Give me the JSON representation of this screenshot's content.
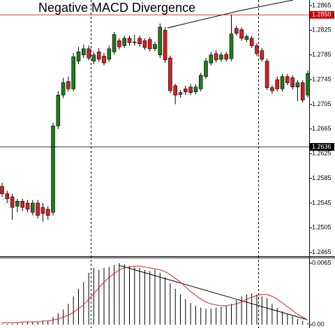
{
  "chart_data": [
    {
      "type": "candlestick",
      "title": "Negative MACD Divergence",
      "open": [
        1.2572,
        1.256,
        1.2555,
        1.254,
        1.2548,
        1.2545,
        1.253,
        1.2545,
        1.2538,
        1.2535,
        1.253,
        1.267,
        1.272,
        1.2742,
        1.273,
        1.2775,
        1.2785,
        1.2795,
        1.2775,
        1.279,
        1.2783,
        1.2778,
        1.279,
        1.2808,
        1.28,
        1.2812,
        1.2805,
        1.2812,
        1.2808,
        1.281,
        1.2795,
        1.2785,
        1.2825,
        1.278,
        1.2735,
        1.2721,
        1.273,
        1.2733,
        1.2725,
        1.273,
        1.275,
        1.2772,
        1.2787,
        1.2778,
        1.2786,
        1.2779,
        1.2828,
        1.2826,
        1.281,
        1.2812,
        1.28,
        1.2792,
        1.2775,
        1.2732,
        1.2745,
        1.273,
        1.275,
        1.2748,
        1.2733,
        1.274,
        1.272
      ],
      "high": [
        1.2578,
        1.2565,
        1.256,
        1.2552,
        1.2552,
        1.255,
        1.255,
        1.255,
        1.2545,
        1.254,
        1.2675,
        1.2726,
        1.2748,
        1.275,
        1.2788,
        1.2798,
        1.2802,
        1.28,
        1.279,
        1.2796,
        1.2788,
        1.28,
        1.2822,
        1.2812,
        1.2816,
        1.2816,
        1.2818,
        1.2816,
        1.2812,
        1.2814,
        1.2806,
        1.2836,
        1.283,
        1.2784,
        1.2738,
        1.2728,
        1.2735,
        1.2738,
        1.2737,
        1.2756,
        1.278,
        1.279,
        1.2792,
        1.2789,
        1.279,
        1.285,
        1.2832,
        1.283,
        1.2818,
        1.2816,
        1.2804,
        1.2796,
        1.2779,
        1.2736,
        1.275,
        1.2754,
        1.2754,
        1.2752,
        1.2744,
        1.2744,
        1.276
      ],
      "low": [
        1.2555,
        1.2545,
        1.2518,
        1.253,
        1.2532,
        1.253,
        1.2525,
        1.252,
        1.2515,
        1.2518,
        1.2525,
        1.2665,
        1.2715,
        1.2726,
        1.2726,
        1.277,
        1.278,
        1.2776,
        1.277,
        1.2774,
        1.2768,
        1.2774,
        1.2786,
        1.2794,
        1.2796,
        1.28,
        1.28,
        1.2798,
        1.2793,
        1.2791,
        1.2791,
        1.278,
        1.2772,
        1.2723,
        1.2705,
        1.2716,
        1.272,
        1.272,
        1.2721,
        1.2726,
        1.2746,
        1.2768,
        1.2773,
        1.2774,
        1.2774,
        1.2775,
        1.2816,
        1.2808,
        1.2806,
        1.2796,
        1.2783,
        1.2774,
        1.2728,
        1.2722,
        1.2726,
        1.2726,
        1.2736,
        1.2729,
        1.271,
        1.2708,
        1.2716
      ],
      "close": [
        1.256,
        1.2552,
        1.2538,
        1.2548,
        1.2538,
        1.2535,
        1.2545,
        1.2525,
        1.2528,
        1.2525,
        1.267,
        1.272,
        1.274,
        1.273,
        1.2782,
        1.279,
        1.2795,
        1.278,
        1.2785,
        1.2778,
        1.2772,
        1.2795,
        1.2818,
        1.2798,
        1.2812,
        1.2805,
        1.2806,
        1.2803,
        1.2797,
        1.2795,
        1.2802,
        1.283,
        1.2777,
        1.2727,
        1.272,
        1.2724,
        1.2725,
        1.2724,
        1.2733,
        1.2752,
        1.2775,
        1.2785,
        1.2777,
        1.2785,
        1.2778,
        1.2819,
        1.282,
        1.2812,
        1.2815,
        1.28,
        1.2787,
        1.2778,
        1.2732,
        1.2727,
        1.273,
        1.275,
        1.274,
        1.2733,
        1.274,
        1.2712,
        1.2755
      ],
      "up_color": "#1f7a1f",
      "down_color": "#d42020",
      "ylim": [
        1.2459,
        1.2874
      ],
      "yticks": [
        1.2865,
        1.2825,
        1.2785,
        1.2745,
        1.2705,
        1.2665,
        1.2625,
        1.2585,
        1.2545,
        1.2505,
        1.2465
      ],
      "price_lines": [
        {
          "value": 1.285,
          "label": "1.2850"
        },
        1.2636
      ],
      "price_line_colors": [
        "#cc0000",
        "#000000"
      ]
    },
    {
      "type": "macd",
      "series": [
        {
          "kind": "bar",
          "color": "#000000",
          "values": [
            0.0001,
            0.0001,
            0.0001,
            0.0002,
            0.0002,
            0.0003,
            0.0003,
            0.0003,
            0.0004,
            0.0004,
            0.0008,
            0.0012,
            0.0016,
            0.0022,
            0.003,
            0.0038,
            0.0045,
            0.0055,
            0.006,
            0.0058,
            0.006,
            0.0061,
            0.0063,
            0.0065,
            0.0064,
            0.0062,
            0.0061,
            0.006,
            0.0058,
            0.0057,
            0.0058,
            0.0055,
            0.005,
            0.0044,
            0.0038,
            0.0032,
            0.0027,
            0.0023,
            0.002,
            0.0018,
            0.0017,
            0.0017,
            0.0018,
            0.0019,
            0.002,
            0.0022,
            0.0026,
            0.003,
            0.0032,
            0.0033,
            0.0032,
            0.003,
            0.0028,
            0.0022,
            0.0018,
            0.0014,
            0.0011,
            0.0009,
            0.0006,
            0.0004,
            0.0002
          ]
        },
        {
          "kind": "line",
          "color": "#d42020",
          "values": [
            0.0002,
            0.0002,
            0.0002,
            0.0002,
            0.0003,
            0.0003,
            0.0003,
            0.0003,
            0.0004,
            0.0004,
            0.0005,
            0.0006,
            0.0008,
            0.001,
            0.0013,
            0.0017,
            0.0021,
            0.0027,
            0.0033,
            0.0039,
            0.0045,
            0.005,
            0.0054,
            0.0058,
            0.006,
            0.0061,
            0.0062,
            0.0062,
            0.0061,
            0.006,
            0.0059,
            0.0058,
            0.0056,
            0.0053,
            0.0049,
            0.0045,
            0.004,
            0.0035,
            0.0031,
            0.0027,
            0.0024,
            0.0022,
            0.0021,
            0.002,
            0.002,
            0.0021,
            0.0022,
            0.0024,
            0.0027,
            0.0029,
            0.0031,
            0.0032,
            0.0032,
            0.003,
            0.0027,
            0.0023,
            0.0019,
            0.0015,
            0.0011,
            0.0008,
            0.0005
          ]
        }
      ],
      "ylim": [
        -0.0002,
        0.0071
      ],
      "yticks": [
        0.0065,
        {
          "value": 0,
          "label": "0.00"
        }
      ]
    }
  ]
}
